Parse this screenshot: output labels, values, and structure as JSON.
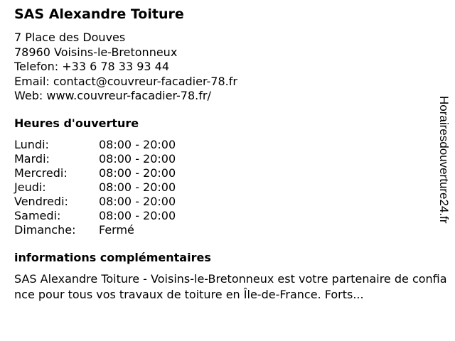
{
  "business": {
    "name": "SAS Alexandre Toiture",
    "address_line1": "7 Place des Douves",
    "address_line2": "78960 Voisins-le-Bretonneux",
    "phone": "Telefon: +33 6 78 33 93 44",
    "email": "Email: contact@couvreur-facadier-78.fr",
    "web": "Web: www.couvreur-facadier-78.fr/"
  },
  "hours": {
    "heading": "Heures d'ouverture",
    "rows": [
      {
        "day": "Lundi:",
        "time": "08:00 - 20:00"
      },
      {
        "day": "Mardi:",
        "time": "08:00 - 20:00"
      },
      {
        "day": "Mercredi:",
        "time": "08:00 - 20:00"
      },
      {
        "day": "Jeudi:",
        "time": "08:00 - 20:00"
      },
      {
        "day": "Vendredi:",
        "time": "08:00 - 20:00"
      },
      {
        "day": "Samedi:",
        "time": "08:00 - 20:00"
      },
      {
        "day": "Dimanche:",
        "time": "Fermé"
      }
    ]
  },
  "info": {
    "heading": "informations complémentaires",
    "text": "SAS Alexandre Toiture - Voisins-le-Bretonneux est votre partenaire de confiance pour tous vos travaux de toiture en Île-de-France. Forts..."
  },
  "watermark": "Horairesdouverture24.fr"
}
